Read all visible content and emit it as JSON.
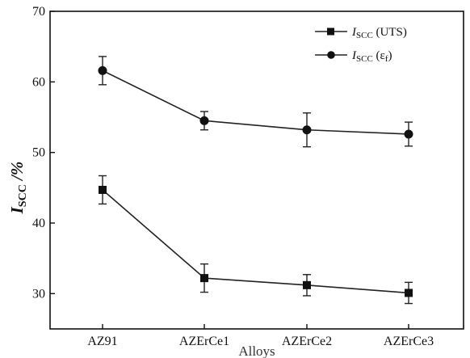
{
  "chart_data": {
    "type": "line",
    "title": "",
    "xlabel": "Alloys",
    "ylabel": "I",
    "ylabel_sub": "SCC",
    "ylabel_unit": " /%",
    "categories": [
      "AZ91",
      "AZErCe1",
      "AZErCe2",
      "AZErCe3"
    ],
    "ylim": [
      25,
      70
    ],
    "yticks": [
      30,
      40,
      50,
      60,
      70
    ],
    "grid": false,
    "legend_position": "top-right",
    "series": [
      {
        "name": "I_SCC (UTS)",
        "legend_main": "I",
        "legend_sub": "SCC",
        "legend_suffix": " (UTS)",
        "marker": "square",
        "values": [
          44.7,
          32.2,
          31.2,
          30.1
        ],
        "errors": [
          2.0,
          2.0,
          1.5,
          1.5
        ]
      },
      {
        "name": "I_SCC (εf)",
        "legend_main": "I",
        "legend_sub": "SCC",
        "legend_suffix_open": " (ε",
        "legend_suffix_sub": "f",
        "legend_suffix_close": ")",
        "marker": "circle",
        "values": [
          61.6,
          54.5,
          53.2,
          52.6
        ],
        "errors": [
          2.0,
          1.3,
          2.4,
          1.7
        ]
      }
    ]
  }
}
